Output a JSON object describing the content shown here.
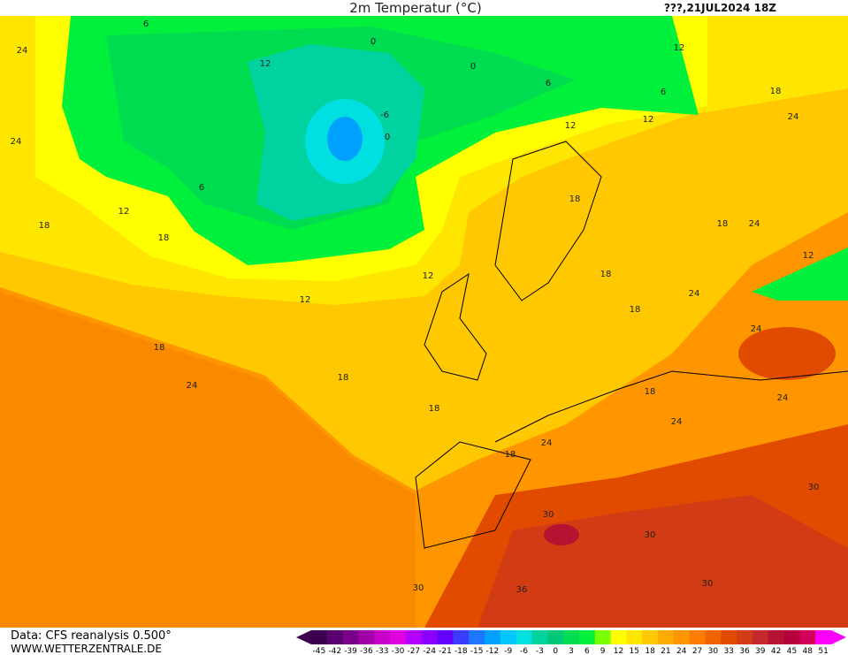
{
  "title": "2m Temperatur (°C)",
  "run": "???,21JUL2024 18Z",
  "source": "Data: CFS reanalysis 0.500°",
  "site": "WWW.WETTERZENTRALE.DE",
  "scale": {
    "values": [
      -45,
      -42,
      -39,
      -36,
      -33,
      -30,
      -27,
      -24,
      -21,
      -18,
      -15,
      -12,
      -9,
      -6,
      -3,
      0,
      3,
      6,
      9,
      12,
      15,
      18,
      21,
      24,
      27,
      30,
      33,
      36,
      39,
      42,
      45,
      48,
      51
    ],
    "colors": [
      "#3c0050",
      "#5a0070",
      "#7a008c",
      "#a000a8",
      "#c800c8",
      "#e000e0",
      "#b400ff",
      "#8c00ff",
      "#6400ff",
      "#3c3cff",
      "#1e78ff",
      "#00a0ff",
      "#00c8ff",
      "#00e0e0",
      "#00d2a0",
      "#00c878",
      "#00dc50",
      "#00f03c",
      "#78ff00",
      "#ffff00",
      "#ffe600",
      "#ffc800",
      "#ffaa00",
      "#ff9600",
      "#ff7d00",
      "#f06400",
      "#e14b00",
      "#d23c14",
      "#c3282d",
      "#b41432",
      "#b4003c",
      "#d2005a",
      "#ff00ff"
    ]
  },
  "contour_labels": [
    24,
    6,
    12,
    24,
    12,
    18,
    18,
    6,
    0,
    0,
    -6,
    0,
    6,
    6,
    12,
    12,
    12,
    18,
    24,
    18,
    18,
    24,
    12,
    12,
    18,
    24,
    18,
    18,
    18,
    18,
    24,
    12,
    24,
    18,
    24,
    18,
    24,
    24,
    30,
    30,
    30,
    36,
    30,
    30
  ]
}
